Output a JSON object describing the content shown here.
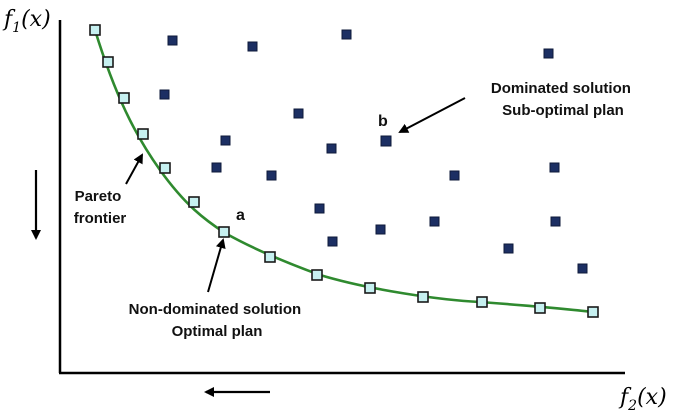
{
  "axes": {
    "y_label": {
      "fn": "f",
      "sub": "1",
      "arg": "(x)"
    },
    "x_label": {
      "fn": "f",
      "sub": "2",
      "arg": "(x)"
    }
  },
  "annotations": {
    "dominated_line1": "Dominated solution",
    "dominated_line2": "Sub-optimal plan",
    "pareto_line1": "Pareto",
    "pareto_line2": "frontier",
    "nondominated_line1": "Non-dominated solution",
    "nondominated_line2": "Optimal plan",
    "point_a": "a",
    "point_b": "b"
  },
  "colors": {
    "frontier_line": "#2f8a2f",
    "frontier_marker_fill": "#c6f0f0",
    "frontier_marker_stroke": "#1a1a1a",
    "dominated_marker_fill": "#1c2f63",
    "axis": "#000000"
  }
}
